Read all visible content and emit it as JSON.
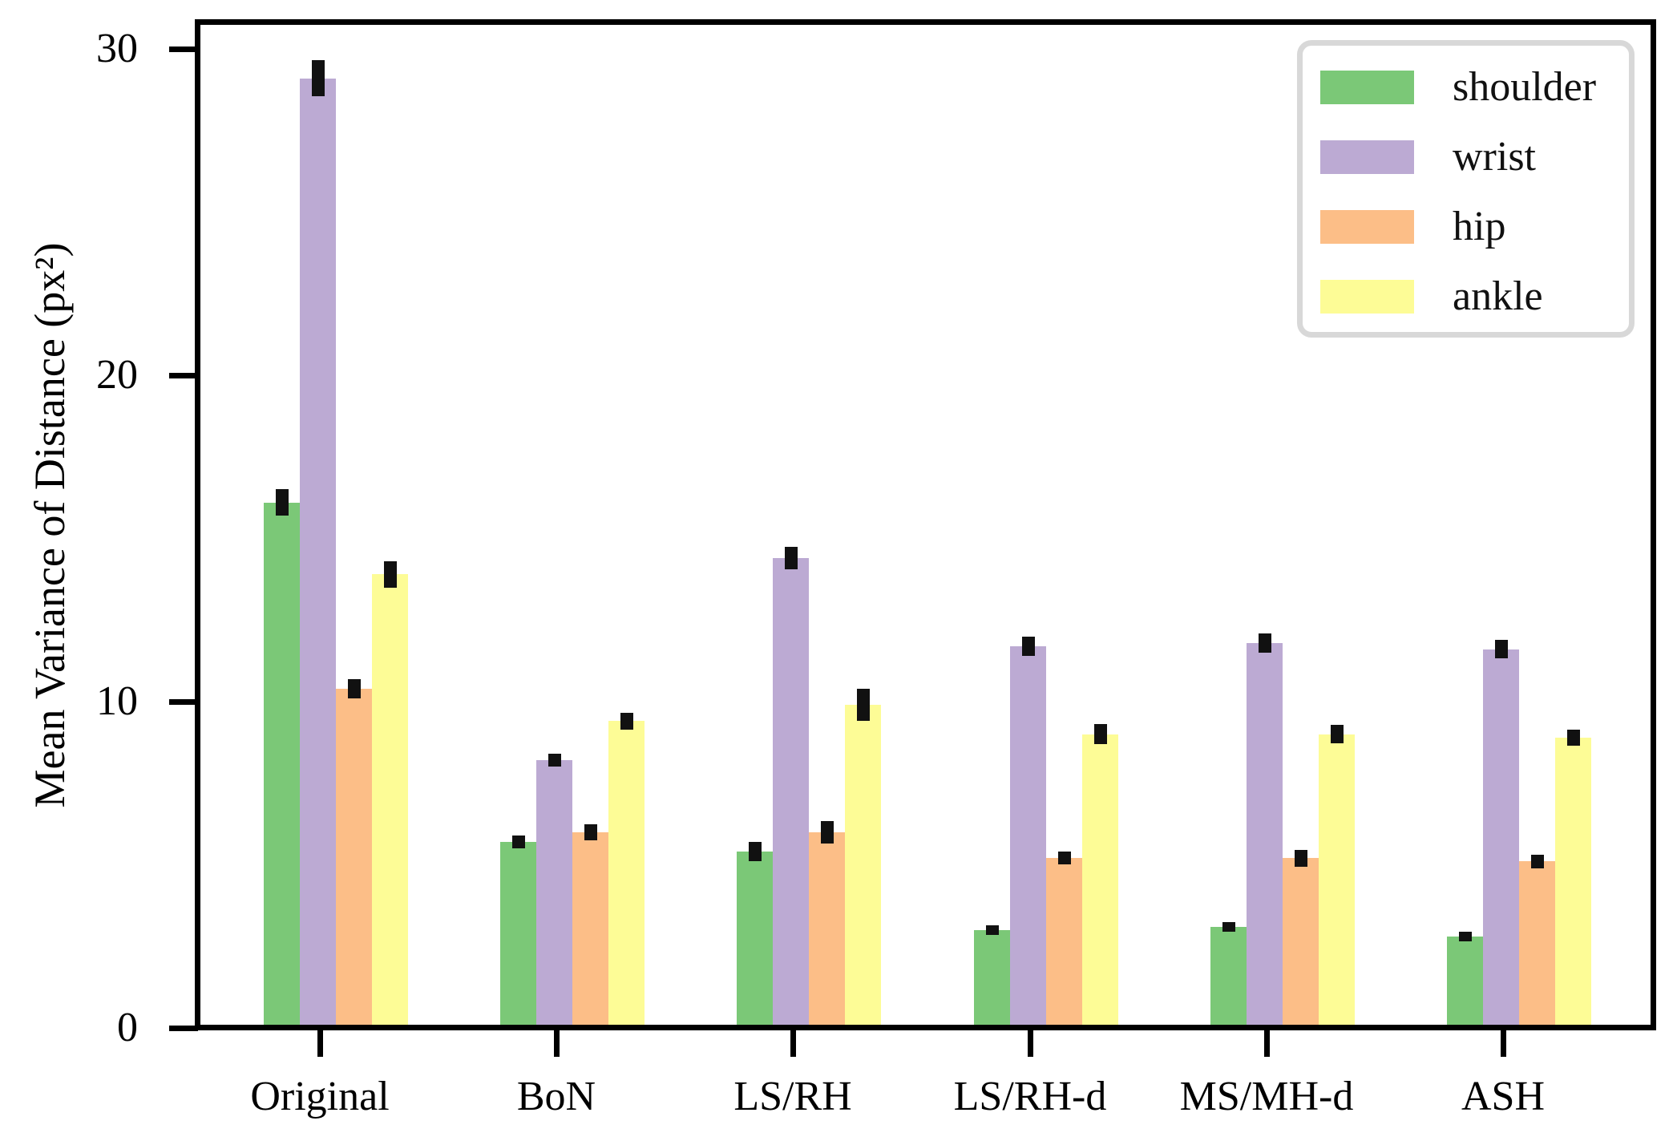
{
  "chart_data": {
    "type": "bar",
    "title": "",
    "xlabel": "",
    "ylabel": "Mean Variance of Distance (px²)",
    "categories": [
      "Original",
      "BoN",
      "LS/RH",
      "LS/RH-d",
      "MS/MH-d",
      "ASH"
    ],
    "yticks": [
      0,
      10,
      20,
      30
    ],
    "ylim": [
      0,
      30.8
    ],
    "grid": false,
    "legend_position": "upper right",
    "axis_color": "#000000",
    "error_bar_color": "#111111",
    "legend_border_color": "#d8d8d8",
    "series": [
      {
        "name": "shoulder",
        "color": "#7bc877",
        "values": [
          16.1,
          5.7,
          5.4,
          3.0,
          3.1,
          2.8
        ],
        "errors": [
          0.4,
          0.2,
          0.3,
          0.12,
          0.15,
          0.1
        ]
      },
      {
        "name": "wrist",
        "color": "#bcaad3",
        "values": [
          29.1,
          8.2,
          14.4,
          11.7,
          11.8,
          11.6
        ],
        "errors": [
          0.55,
          0.2,
          0.35,
          0.3,
          0.3,
          0.28
        ]
      },
      {
        "name": "hip",
        "color": "#fcbe87",
        "values": [
          10.4,
          6.0,
          6.0,
          5.2,
          5.2,
          5.1
        ],
        "errors": [
          0.3,
          0.25,
          0.35,
          0.2,
          0.25,
          0.2
        ]
      },
      {
        "name": "ankle",
        "color": "#fdfc96",
        "values": [
          13.9,
          9.4,
          9.9,
          9.0,
          9.0,
          8.9
        ],
        "errors": [
          0.4,
          0.25,
          0.5,
          0.3,
          0.28,
          0.25
        ]
      }
    ]
  }
}
